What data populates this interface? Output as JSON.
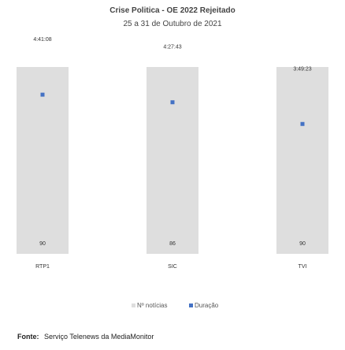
{
  "chart_data": {
    "type": "bar",
    "title": "Crise Politica - OE 2022 Rejeitado",
    "subtitle": "25 a 31 de Outubro de 2021",
    "categories": [
      "RTP1",
      "SIC",
      "TVI"
    ],
    "series": [
      {
        "name": "Nº notícias",
        "type": "bar",
        "values": [
          90,
          86,
          90
        ],
        "color": "#dedede"
      },
      {
        "name": "Duração",
        "type": "scatter",
        "values": [
          "4:41:08",
          "4:27:43",
          "3:49:23"
        ],
        "color": "#4472c4"
      }
    ],
    "legend_position": "bottom",
    "grid": false
  },
  "source": {
    "label": "Fonte:",
    "text": "Serviço Telenews da MediaMonitor"
  }
}
